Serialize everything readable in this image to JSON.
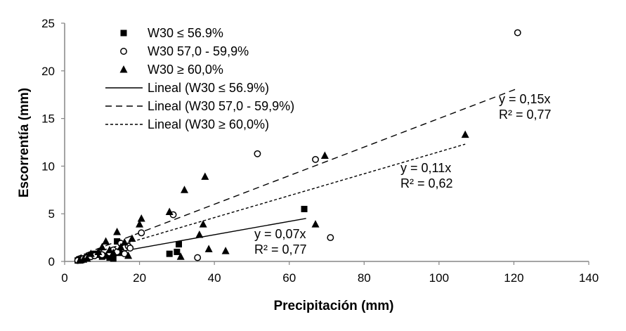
{
  "chart_data": {
    "type": "scatter",
    "xlabel": "Precipitación (mm)",
    "ylabel": "Escorrentía (mm)",
    "xlim": [
      0,
      140
    ],
    "ylim": [
      0,
      25
    ],
    "xticks": [
      "0",
      "20",
      "40",
      "60",
      "80",
      "100",
      "120",
      "140"
    ],
    "yticks": [
      "0",
      "5",
      "10",
      "15",
      "20",
      "25"
    ],
    "grid": false,
    "legend_position": "top-left",
    "series": [
      {
        "name": "W30 ≤ 56.9%",
        "marker": "square",
        "points": [
          [
            3.5,
            0.1
          ],
          [
            4,
            0.2
          ],
          [
            4.5,
            0.15
          ],
          [
            5,
            0.3
          ],
          [
            6,
            0.5
          ],
          [
            7,
            0.6
          ],
          [
            8,
            0.8
          ],
          [
            9,
            0.7
          ],
          [
            10,
            0.5
          ],
          [
            11,
            0.6
          ],
          [
            12,
            0.4
          ],
          [
            13,
            0.3
          ],
          [
            13.5,
            1.0
          ],
          [
            14,
            2.1
          ],
          [
            14.5,
            0.9
          ],
          [
            28,
            0.8
          ],
          [
            30,
            1.0
          ],
          [
            30.5,
            1.8
          ],
          [
            64,
            5.5
          ]
        ]
      },
      {
        "name": "W30 57,0 - 59,9%",
        "marker": "circle",
        "points": [
          [
            3.5,
            0.1
          ],
          [
            4.5,
            0.2
          ],
          [
            5,
            0.3
          ],
          [
            6,
            0.4
          ],
          [
            7,
            0.5
          ],
          [
            8,
            0.6
          ],
          [
            10,
            0.7
          ],
          [
            12,
            0.9
          ],
          [
            13,
            1.2
          ],
          [
            14,
            1.0
          ],
          [
            15,
            1.9
          ],
          [
            16,
            0.8
          ],
          [
            17,
            1.6
          ],
          [
            17.5,
            1.4
          ],
          [
            20.5,
            3.0
          ],
          [
            29,
            4.9
          ],
          [
            35.5,
            0.4
          ],
          [
            51.5,
            11.3
          ],
          [
            67,
            10.7
          ],
          [
            71,
            2.5
          ],
          [
            121,
            24.0
          ]
        ]
      },
      {
        "name": "W30 ≥ 60,0%",
        "marker": "triangle",
        "points": [
          [
            4,
            0.1
          ],
          [
            5,
            0.2
          ],
          [
            6,
            0.3
          ],
          [
            7,
            0.8
          ],
          [
            9,
            1.0
          ],
          [
            10,
            1.5
          ],
          [
            11,
            2.1
          ],
          [
            12,
            1.2
          ],
          [
            13,
            0.9
          ],
          [
            14,
            3.1
          ],
          [
            15,
            1.5
          ],
          [
            16,
            2.0
          ],
          [
            17,
            0.6
          ],
          [
            18,
            2.4
          ],
          [
            20,
            3.9
          ],
          [
            20.5,
            4.5
          ],
          [
            28,
            5.2
          ],
          [
            31,
            0.5
          ],
          [
            32,
            7.5
          ],
          [
            36,
            2.8
          ],
          [
            37,
            3.9
          ],
          [
            37.5,
            8.9
          ],
          [
            38.5,
            1.3
          ],
          [
            43,
            1.1
          ],
          [
            67,
            3.9
          ],
          [
            69.5,
            11.1
          ],
          [
            107,
            13.3
          ]
        ]
      }
    ],
    "trendlines": [
      {
        "name": "Lineal (W30 ≤ 56.9%)",
        "style": "solid",
        "slope": 0.07,
        "x": [
          3,
          64.5
        ],
        "equation": "y = 0,07x",
        "r2": "R² = 0,77"
      },
      {
        "name": "Lineal (W30 57,0 - 59,9%)",
        "style": "dashed",
        "slope": 0.15,
        "x": [
          3,
          121
        ],
        "equation": "y = 0,15x",
        "r2": "R² = 0,77"
      },
      {
        "name": "Lineal (W30 ≥ 60,0%)",
        "style": "dotted",
        "slope": 0.115,
        "x": [
          3,
          107
        ],
        "equation": "y = 0,11x",
        "r2": "R² = 0,62"
      }
    ]
  }
}
